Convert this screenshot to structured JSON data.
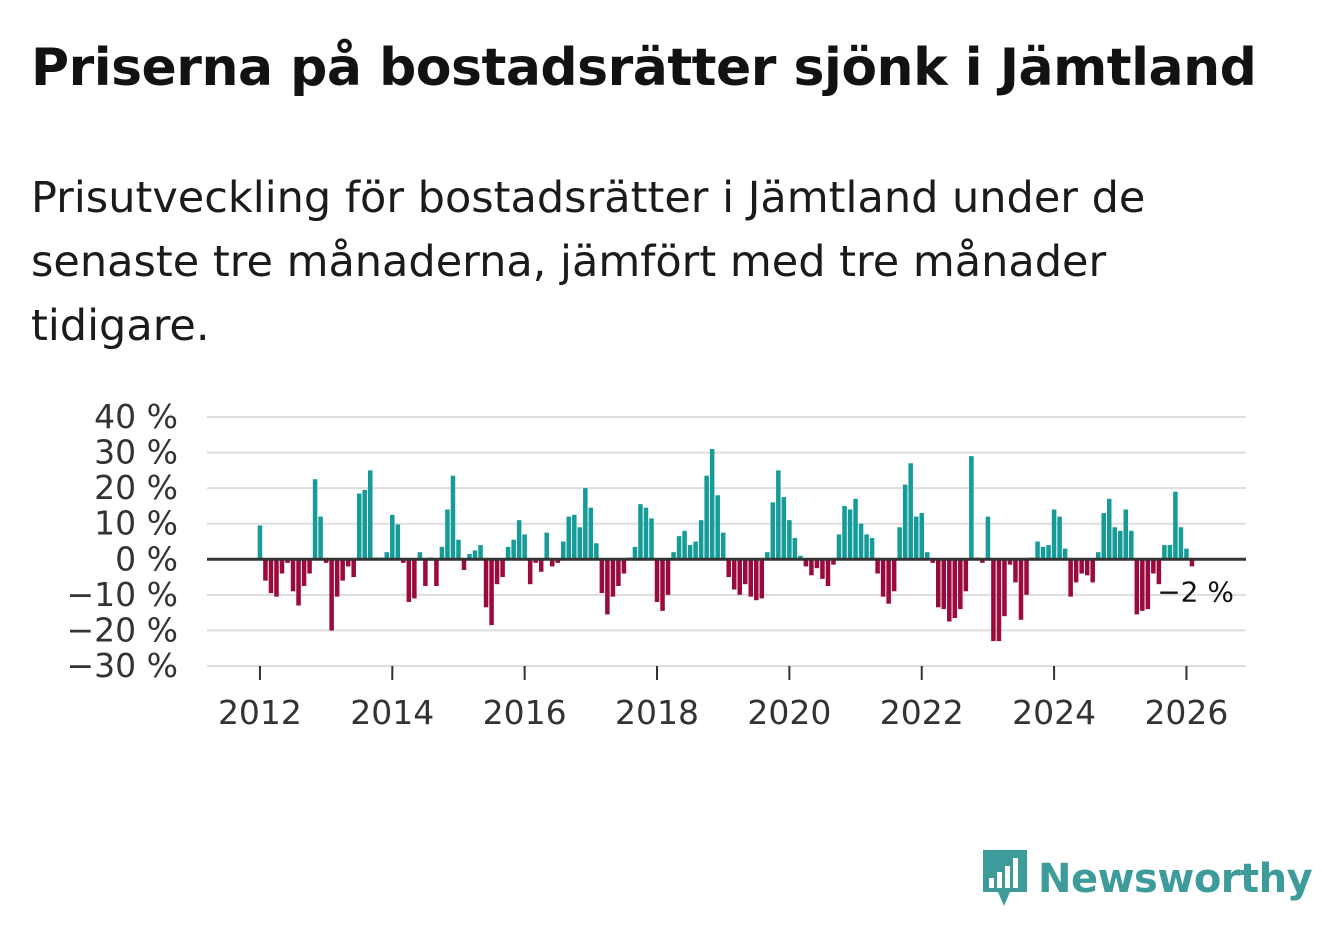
{
  "title": "Priserna på bostadsrätter sjönk i Jämtland",
  "subtitle": "Prisutveckling för bostadsrätter i Jämtland under de senaste tre månaderna, jämfört med tre månader tidigare.",
  "brand": {
    "name": "Newsworthy",
    "color": "#3d9b99"
  },
  "colors": {
    "positive": "#169c98",
    "negative": "#9a0a3e",
    "zero_line": "#333333",
    "grid": "#dddddd"
  },
  "chart_data": {
    "type": "bar",
    "title": "Priserna på bostadsrätter sjönk i Jämtland",
    "xlabel": "",
    "ylabel": "",
    "ylim": [
      -30,
      40
    ],
    "xlim": [
      2011.2,
      2026.9
    ],
    "yticks": [
      40,
      30,
      20,
      10,
      0,
      -10,
      -20,
      -30
    ],
    "ytick_labels": [
      "40 %",
      "30 %",
      "20 %",
      "10 %",
      "0 %",
      "−10 %",
      "−20 %",
      "−30 %"
    ],
    "xticks": [
      2012,
      2014,
      2016,
      2018,
      2020,
      2022,
      2024,
      2026
    ],
    "xtick_labels": [
      "2012",
      "2014",
      "2016",
      "2018",
      "2020",
      "2022",
      "2024",
      "2026"
    ],
    "start": 2012.0,
    "step_months": 1,
    "values": [
      9.5,
      -6,
      -9.5,
      -10.5,
      -4,
      -1,
      -9,
      -13,
      -7.5,
      -4,
      22.5,
      12,
      -1,
      -20,
      -10.5,
      -6,
      -2,
      -5,
      18.5,
      19.5,
      25,
      0.5,
      0.5,
      2,
      12.5,
      9.8,
      -1,
      -12,
      -11,
      2,
      -7.5,
      0.5,
      -7.5,
      3.5,
      14,
      23.5,
      5.5,
      -3,
      1.5,
      2.5,
      4,
      -13.5,
      -18.5,
      -7,
      -5,
      3.5,
      5.5,
      11,
      7,
      -7,
      -1,
      -3.5,
      7.5,
      -2,
      -1,
      5,
      12,
      12.5,
      9,
      20,
      14.5,
      4.5,
      -9.5,
      -15.5,
      -10.5,
      -7.5,
      -4,
      0.5,
      3.5,
      15.5,
      14.5,
      11.5,
      -12,
      -14.5,
      -10,
      2,
      6.5,
      8,
      4,
      5,
      11,
      23.5,
      31,
      18,
      7.5,
      -5,
      -8.5,
      -10,
      -7,
      -10.5,
      -11.5,
      -11,
      2,
      16,
      25,
      17.5,
      11,
      6,
      1,
      -2,
      -4.5,
      -2.5,
      -5.5,
      -7.5,
      -1.5,
      7,
      15,
      14,
      17,
      10,
      7,
      6,
      -4,
      -10.5,
      -12.5,
      -9,
      9,
      21,
      27,
      12,
      13,
      2,
      -1,
      -13.5,
      -14,
      -17.5,
      -16.5,
      -14,
      -9,
      29,
      0.5,
      -1,
      12,
      -23,
      -23,
      -16,
      -1.5,
      -6.5,
      -17,
      -10,
      0.5,
      5,
      3.5,
      4,
      14,
      12,
      3,
      -10.5,
      -6.5,
      -4,
      -4.5,
      -6.5,
      2,
      13,
      17,
      9,
      8,
      14,
      8,
      -15.5,
      -14.5,
      -14,
      -4,
      -7,
      4,
      4,
      19,
      9,
      3,
      -2
    ],
    "end_label": "−2 %"
  }
}
